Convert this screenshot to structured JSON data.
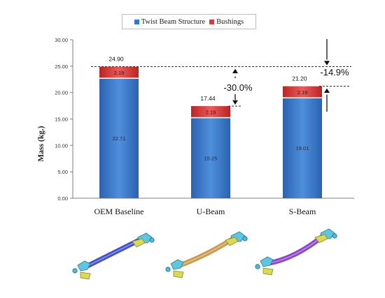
{
  "chart_data": {
    "type": "bar",
    "stacked": true,
    "categories": [
      "OEM Baseline",
      "U-Beam",
      "S-Beam"
    ],
    "series": [
      {
        "name": "Twist Beam Structure",
        "values": [
          22.71,
          15.25,
          19.01
        ],
        "color": "#3a77c9"
      },
      {
        "name": "Bushings",
        "values": [
          2.19,
          2.19,
          2.19
        ],
        "color": "#d93a3a"
      }
    ],
    "segment_labels": [
      [
        "22.71",
        "15.25",
        "19.01"
      ],
      [
        "2.19",
        "2.19",
        "2.19"
      ]
    ],
    "totals": [
      24.9,
      17.44,
      21.2
    ],
    "total_labels": [
      "24.90",
      "17.44",
      "21.20"
    ],
    "ylabel": "Mass (kg.)",
    "ylim": [
      0,
      30
    ],
    "yticks": [
      "0.00",
      "5.00",
      "10.00",
      "15.00",
      "20.00",
      "25.00",
      "30.00"
    ],
    "grid": false,
    "legend_position": "top",
    "annotations": {
      "u_beam_reduction": "-30.0%",
      "s_beam_reduction": "-14.9%"
    }
  },
  "images": [
    {
      "name": "oem-baseline-part",
      "beam_color": "#3f4fc8"
    },
    {
      "name": "u-beam-part",
      "beam_color": "#c99a4a"
    },
    {
      "name": "s-beam-part",
      "beam_color": "#8b45c8"
    }
  ]
}
